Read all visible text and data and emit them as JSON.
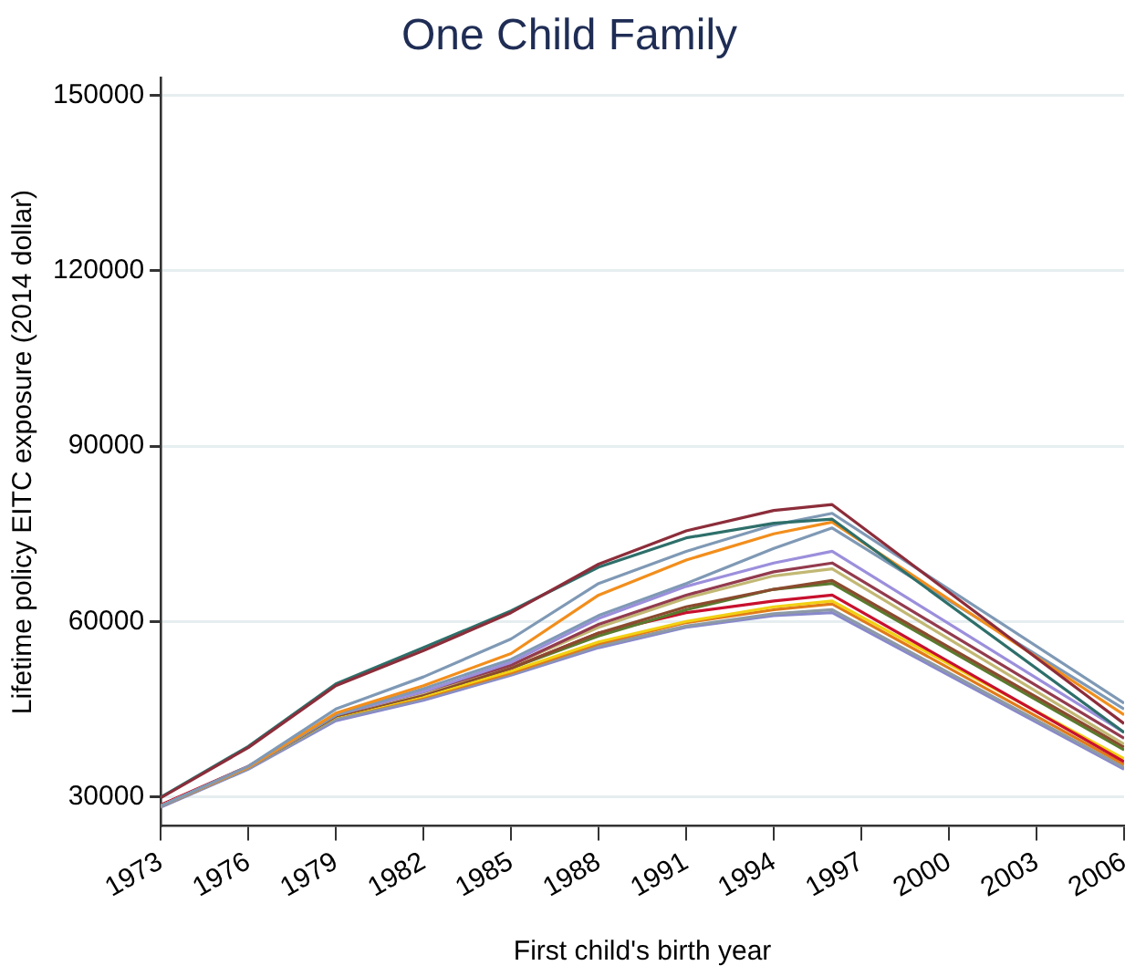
{
  "chart_data": {
    "type": "line",
    "title": "One Child Family",
    "xlabel": "First child's birth year",
    "ylabel": "Lifetime policy EITC exposure (2014 dollar)",
    "x": [
      1973,
      1976,
      1979,
      1982,
      1985,
      1988,
      1991,
      1994,
      1996,
      2006
    ],
    "xlim": [
      1973,
      2006
    ],
    "xticks": [
      1973,
      1976,
      1979,
      1982,
      1985,
      1988,
      1991,
      1994,
      1997,
      2000,
      2003,
      2006
    ],
    "ylim": [
      25000,
      153000
    ],
    "yticks": [
      30000,
      60000,
      90000,
      120000,
      150000
    ],
    "grid": "y",
    "legend": false,
    "marker": "none",
    "line_style": "solid",
    "series": [
      {
        "color": "#8c2d3a",
        "values": [
          29800,
          38400,
          49000,
          55000,
          61500,
          69800,
          75500,
          79000,
          80000,
          42500
        ]
      },
      {
        "color": "#2e6f6a",
        "values": [
          29900,
          38600,
          49300,
          55500,
          61800,
          69300,
          74300,
          76800,
          77500,
          41000
        ]
      },
      {
        "color": "#7f99b5",
        "values": [
          28400,
          35200,
          45000,
          50500,
          57000,
          66500,
          72000,
          76500,
          78500,
          46000
        ]
      },
      {
        "color": "#f28e1c",
        "values": [
          28400,
          35000,
          44300,
          49000,
          54500,
          64500,
          70500,
          75000,
          77000,
          44000
        ]
      },
      {
        "color": "#7f99b5",
        "values": [
          28400,
          35000,
          44000,
          48500,
          53500,
          61000,
          66500,
          72500,
          76000,
          45000
        ]
      },
      {
        "color": "#9c8fdc",
        "values": [
          28400,
          35000,
          44000,
          48000,
          53000,
          60500,
          66000,
          70000,
          72000,
          41000
        ]
      },
      {
        "color": "#933b4e",
        "values": [
          28400,
          35000,
          44000,
          48000,
          52500,
          59500,
          64500,
          68500,
          70000,
          40000
        ]
      },
      {
        "color": "#c2b874",
        "values": [
          28400,
          35000,
          44000,
          47800,
          52500,
          59000,
          64000,
          67800,
          69000,
          39000
        ]
      },
      {
        "color": "#8b4a2e",
        "values": [
          28400,
          35000,
          43800,
          47500,
          52000,
          58000,
          62500,
          65500,
          67000,
          38500
        ]
      },
      {
        "color": "#5a7a2e",
        "values": [
          28400,
          35000,
          43800,
          47500,
          52000,
          57500,
          62000,
          65500,
          66500,
          38000
        ]
      },
      {
        "color": "#c8102e",
        "values": [
          28600,
          35200,
          44000,
          47800,
          52000,
          58000,
          61500,
          63500,
          64500,
          36000
        ]
      },
      {
        "color": "#f2d013",
        "values": [
          28400,
          35000,
          43700,
          47200,
          51500,
          56500,
          60000,
          62500,
          63500,
          36500
        ]
      },
      {
        "color": "#e07b1a",
        "values": [
          28400,
          35000,
          43700,
          47000,
          51200,
          56200,
          59800,
          62000,
          63000,
          35500
        ]
      },
      {
        "color": "#8d9aa6",
        "values": [
          28300,
          34800,
          43300,
          46800,
          51000,
          55800,
          59200,
          61300,
          62000,
          35000
        ]
      },
      {
        "color": "#8888cc",
        "values": [
          28200,
          34700,
          43000,
          46500,
          50800,
          55500,
          59000,
          61000,
          61500,
          34700
        ]
      }
    ]
  }
}
